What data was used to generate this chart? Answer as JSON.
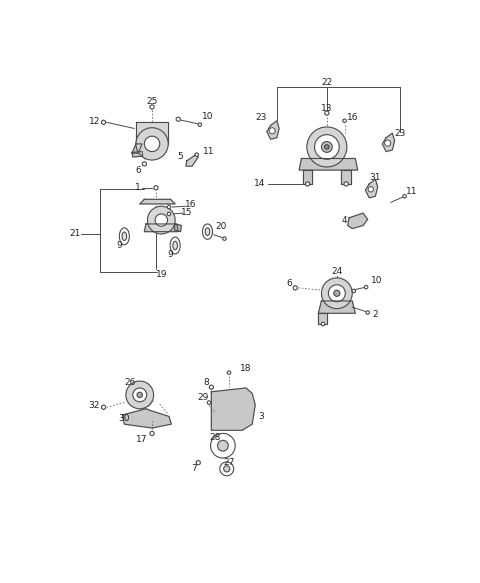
{
  "bg_color": "#ffffff",
  "lc": "#4a4a4a",
  "lc2": "#888888",
  "fs": 6.5,
  "fw": "normal"
}
